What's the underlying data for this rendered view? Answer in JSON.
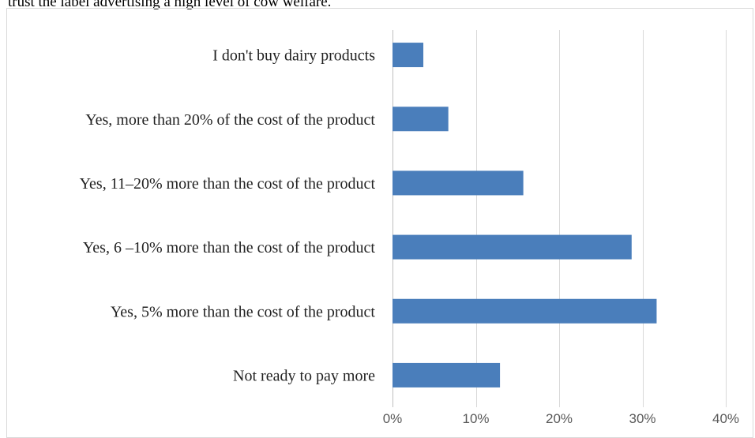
{
  "caption": "trust the label advertising a high level of cow welfare.",
  "colors": {
    "bar": "#4a7ebb",
    "grid": "#d9d9d9",
    "axis": "#bfbfbf"
  },
  "chart_data": {
    "type": "bar",
    "orientation": "horizontal",
    "categories": [
      "I don't buy dairy products",
      "Yes, more than 20% of the cost of the product",
      "Yes, 11–20% more than the cost of the product",
      "Yes, 6 –10% more than the cost of the product",
      "Yes, 5% more than the cost of the product",
      "Not ready to pay more"
    ],
    "values": [
      3.7,
      6.7,
      15.7,
      28.7,
      31.7,
      12.9
    ],
    "xlim": [
      0,
      40
    ],
    "xticks": [
      0,
      10,
      20,
      30,
      40
    ],
    "tick_labels": [
      "0%",
      "10%",
      "20%",
      "30%",
      "40%"
    ],
    "grid": true,
    "legend": "none"
  }
}
